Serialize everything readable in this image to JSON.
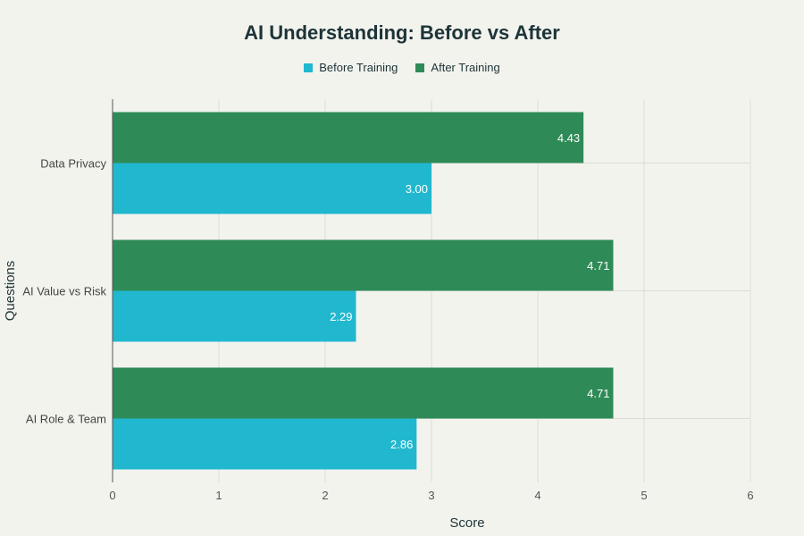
{
  "chart_data": {
    "type": "bar",
    "orientation": "horizontal",
    "title": "AI Understanding: Before vs After",
    "xlabel": "Score",
    "ylabel": "Questions",
    "xlim": [
      0,
      6
    ],
    "x_ticks": [
      "0",
      "1",
      "2",
      "3",
      "4",
      "5",
      "6"
    ],
    "grid": true,
    "legend_position": "top-center",
    "categories": [
      "Data Privacy",
      "AI Value vs Risk",
      "AI Role & Team"
    ],
    "series": [
      {
        "name": "Before Training",
        "color": "#21b8cf",
        "values": [
          3.0,
          2.29,
          2.86
        ],
        "labels": [
          "3.00",
          "2.29",
          "2.86"
        ]
      },
      {
        "name": "After Training",
        "color": "#2e8b57",
        "values": [
          4.43,
          4.71,
          4.71
        ],
        "labels": [
          "4.43",
          "4.71",
          "4.71"
        ]
      }
    ]
  }
}
